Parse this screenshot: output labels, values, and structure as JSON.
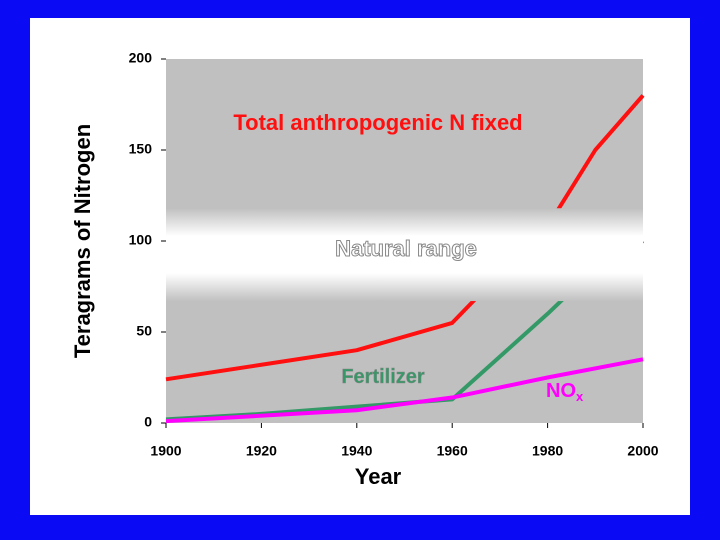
{
  "chart_data": {
    "type": "line",
    "x_label": "Year",
    "y_label": "Teragrams of Nitrogen",
    "xlim": [
      1900,
      2000
    ],
    "xticks": [
      1900,
      1920,
      1940,
      1960,
      1980,
      2000
    ],
    "ylim": [
      0,
      200
    ],
    "yticks": [
      0,
      50,
      100,
      150,
      200
    ],
    "background": "#c0c0c0",
    "bands": [
      {
        "label": "Natural range",
        "range": [
          67,
          118
        ],
        "color": "#ffffff"
      }
    ],
    "series": [
      {
        "name": "Total anthropogenic N fixed",
        "color": "#ff1010",
        "x": [
          1900,
          1920,
          1940,
          1960,
          1970,
          1980,
          1990,
          2000
        ],
        "values": [
          24,
          32,
          40,
          55,
          82,
          108,
          150,
          180
        ]
      },
      {
        "name": "Fertilizer",
        "color": "#339966",
        "x": [
          1900,
          1920,
          1940,
          1960,
          1980,
          1990,
          2000
        ],
        "values": [
          2,
          5,
          9,
          13,
          60,
          85,
          100
        ]
      },
      {
        "name": "NO",
        "subscript": "x",
        "color": "#ff00ff",
        "x": [
          1900,
          1940,
          1960,
          1980,
          2000
        ],
        "values": [
          1,
          7,
          14,
          25,
          35
        ]
      }
    ]
  }
}
